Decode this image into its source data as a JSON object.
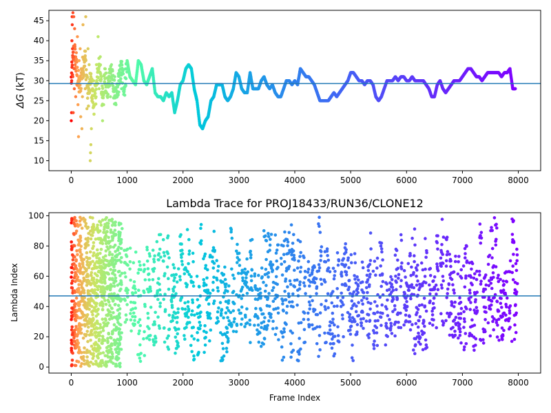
{
  "chart_data": [
    {
      "type": "scatter",
      "title": "",
      "xlabel": "",
      "ylabel": "ΔG (kT)",
      "ylabel_symbol": "ΔG",
      "ylabel_unit": "(kT)",
      "xlim": [
        -400,
        8400
      ],
      "ylim": [
        7.5,
        47.6
      ],
      "xticks": [
        0,
        1000,
        2000,
        3000,
        4000,
        5000,
        6000,
        7000,
        8000
      ],
      "yticks": [
        10,
        15,
        20,
        25,
        30,
        35,
        40,
        45
      ],
      "colormap": "rainbow",
      "color_mapped_to": "frame index (red at 0, violet at ~8000)",
      "hline": {
        "y": 29.3,
        "color": "#1f77b4"
      },
      "grid": false,
      "legend": "none",
      "series_path": {
        "description": "running estimate, one point per frame; approximate trace",
        "x": [
          0,
          50,
          100,
          150,
          200,
          250,
          300,
          350,
          400,
          450,
          500,
          550,
          600,
          650,
          700,
          750,
          800,
          850,
          900,
          950,
          1000,
          1050,
          1100,
          1150,
          1200,
          1250,
          1300,
          1350,
          1400,
          1450,
          1500,
          1550,
          1600,
          1650,
          1700,
          1750,
          1800,
          1850,
          1900,
          1950,
          2000,
          2050,
          2100,
          2150,
          2200,
          2250,
          2300,
          2350,
          2400,
          2450,
          2500,
          2550,
          2600,
          2650,
          2700,
          2750,
          2800,
          2850,
          2900,
          2950,
          3000,
          3050,
          3100,
          3150,
          3200,
          3250,
          3300,
          3350,
          3400,
          3450,
          3500,
          3550,
          3600,
          3650,
          3700,
          3750,
          3800,
          3850,
          3900,
          3950,
          4000,
          4050,
          4100,
          4150,
          4200,
          4250,
          4300,
          4350,
          4400,
          4450,
          4500,
          4550,
          4600,
          4650,
          4700,
          4750,
          4800,
          4850,
          4900,
          4950,
          5000,
          5050,
          5100,
          5150,
          5200,
          5250,
          5300,
          5350,
          5400,
          5450,
          5500,
          5550,
          5600,
          5650,
          5700,
          5750,
          5800,
          5850,
          5900,
          5950,
          6000,
          6050,
          6100,
          6150,
          6200,
          6250,
          6300,
          6350,
          6400,
          6450,
          6500,
          6550,
          6600,
          6650,
          6700,
          6750,
          6800,
          6850,
          6900,
          6950,
          7000,
          7050,
          7100,
          7150,
          7200,
          7250,
          7300,
          7350,
          7400,
          7450,
          7500,
          7550,
          7600,
          7650,
          7700,
          7750,
          7800,
          7850,
          7900,
          7950
        ],
        "y": [
          30,
          38,
          32,
          28,
          33,
          36,
          26,
          30,
          24,
          28,
          35,
          26,
          31,
          27,
          33,
          29,
          25,
          30,
          33,
          28,
          35,
          31,
          30,
          29,
          35,
          34,
          30,
          29,
          31,
          33,
          27,
          26,
          26,
          25,
          27,
          26,
          27,
          22,
          25,
          29,
          30,
          33,
          34,
          33,
          28,
          25,
          19,
          18,
          20,
          21,
          25,
          26,
          29,
          29,
          29,
          26,
          25,
          26,
          28,
          32,
          31,
          28,
          27,
          27,
          32,
          28,
          28,
          28,
          30,
          31,
          29,
          28,
          29,
          27,
          26,
          26,
          28,
          30,
          30,
          29,
          30,
          29,
          33,
          32,
          31,
          31,
          30,
          29,
          27,
          25,
          25,
          25,
          25,
          26,
          27,
          26,
          27,
          28,
          29,
          30,
          32,
          32,
          31,
          30,
          30,
          29,
          30,
          30,
          29,
          26,
          25,
          26,
          28,
          30,
          30,
          30,
          31,
          30,
          31,
          31,
          30,
          30,
          31,
          30,
          30,
          30,
          30,
          29,
          28,
          26,
          26,
          29,
          30,
          28,
          27,
          28,
          29,
          30,
          30,
          30,
          31,
          32,
          33,
          33,
          32,
          31,
          31,
          30,
          31,
          32,
          32,
          32,
          32,
          32,
          31,
          32,
          32,
          33,
          28,
          28
        ]
      },
      "series_scatter_early": {
        "description": "sparse noisy points for frames 0–900 (approximate)",
        "points": [
          [
            0,
            20
          ],
          [
            5,
            22
          ],
          [
            8,
            30
          ],
          [
            12,
            40
          ],
          [
            15,
            46
          ],
          [
            18,
            44
          ],
          [
            22,
            38
          ],
          [
            28,
            31
          ],
          [
            30,
            47
          ],
          [
            35,
            22
          ],
          [
            40,
            36
          ],
          [
            45,
            46
          ],
          [
            50,
            33
          ],
          [
            55,
            28
          ],
          [
            60,
            43
          ],
          [
            65,
            39
          ],
          [
            70,
            34
          ],
          [
            80,
            26
          ],
          [
            90,
            37
          ],
          [
            100,
            29
          ],
          [
            110,
            41
          ],
          [
            120,
            24
          ],
          [
            130,
            16
          ],
          [
            140,
            35
          ],
          [
            150,
            30
          ],
          [
            160,
            38
          ],
          [
            170,
            21
          ],
          [
            180,
            33
          ],
          [
            190,
            18
          ],
          [
            200,
            26
          ],
          [
            210,
            44
          ],
          [
            220,
            31
          ],
          [
            240,
            36
          ],
          [
            250,
            28
          ],
          [
            260,
            46
          ],
          [
            280,
            23
          ],
          [
            300,
            38
          ],
          [
            320,
            34
          ],
          [
            340,
            10
          ],
          [
            345,
            12
          ],
          [
            350,
            14
          ],
          [
            360,
            18
          ],
          [
            380,
            28
          ],
          [
            400,
            30
          ],
          [
            420,
            24
          ],
          [
            450,
            34
          ],
          [
            480,
            41
          ],
          [
            500,
            28
          ],
          [
            520,
            36
          ],
          [
            540,
            31
          ],
          [
            560,
            20
          ],
          [
            580,
            24
          ],
          [
            600,
            33
          ],
          [
            620,
            27
          ],
          [
            650,
            29
          ],
          [
            680,
            32
          ],
          [
            700,
            26
          ],
          [
            720,
            34
          ],
          [
            750,
            28
          ],
          [
            780,
            31
          ],
          [
            800,
            24
          ],
          [
            820,
            27
          ],
          [
            850,
            30
          ],
          [
            880,
            33
          ],
          [
            900,
            28
          ]
        ]
      }
    },
    {
      "type": "scatter",
      "title": "Lambda Trace for PROJ18433/RUN36/CLONE12",
      "xlabel": "Frame Index",
      "ylabel": "Lambda Index",
      "xlim": [
        -400,
        8400
      ],
      "ylim": [
        -4,
        102
      ],
      "xticks": [
        0,
        1000,
        2000,
        3000,
        4000,
        5000,
        6000,
        7000,
        8000
      ],
      "yticks": [
        0,
        20,
        40,
        60,
        80,
        100
      ],
      "colormap": "rainbow",
      "color_mapped_to": "frame index (red at 0, violet at ~8000)",
      "hline": {
        "y": 47,
        "color": "#1f77b4"
      },
      "grid": false,
      "legend": "none",
      "points_description": "~8000 points, one per frame, lambda index 0–99, appearing as vertical streaks"
    }
  ]
}
